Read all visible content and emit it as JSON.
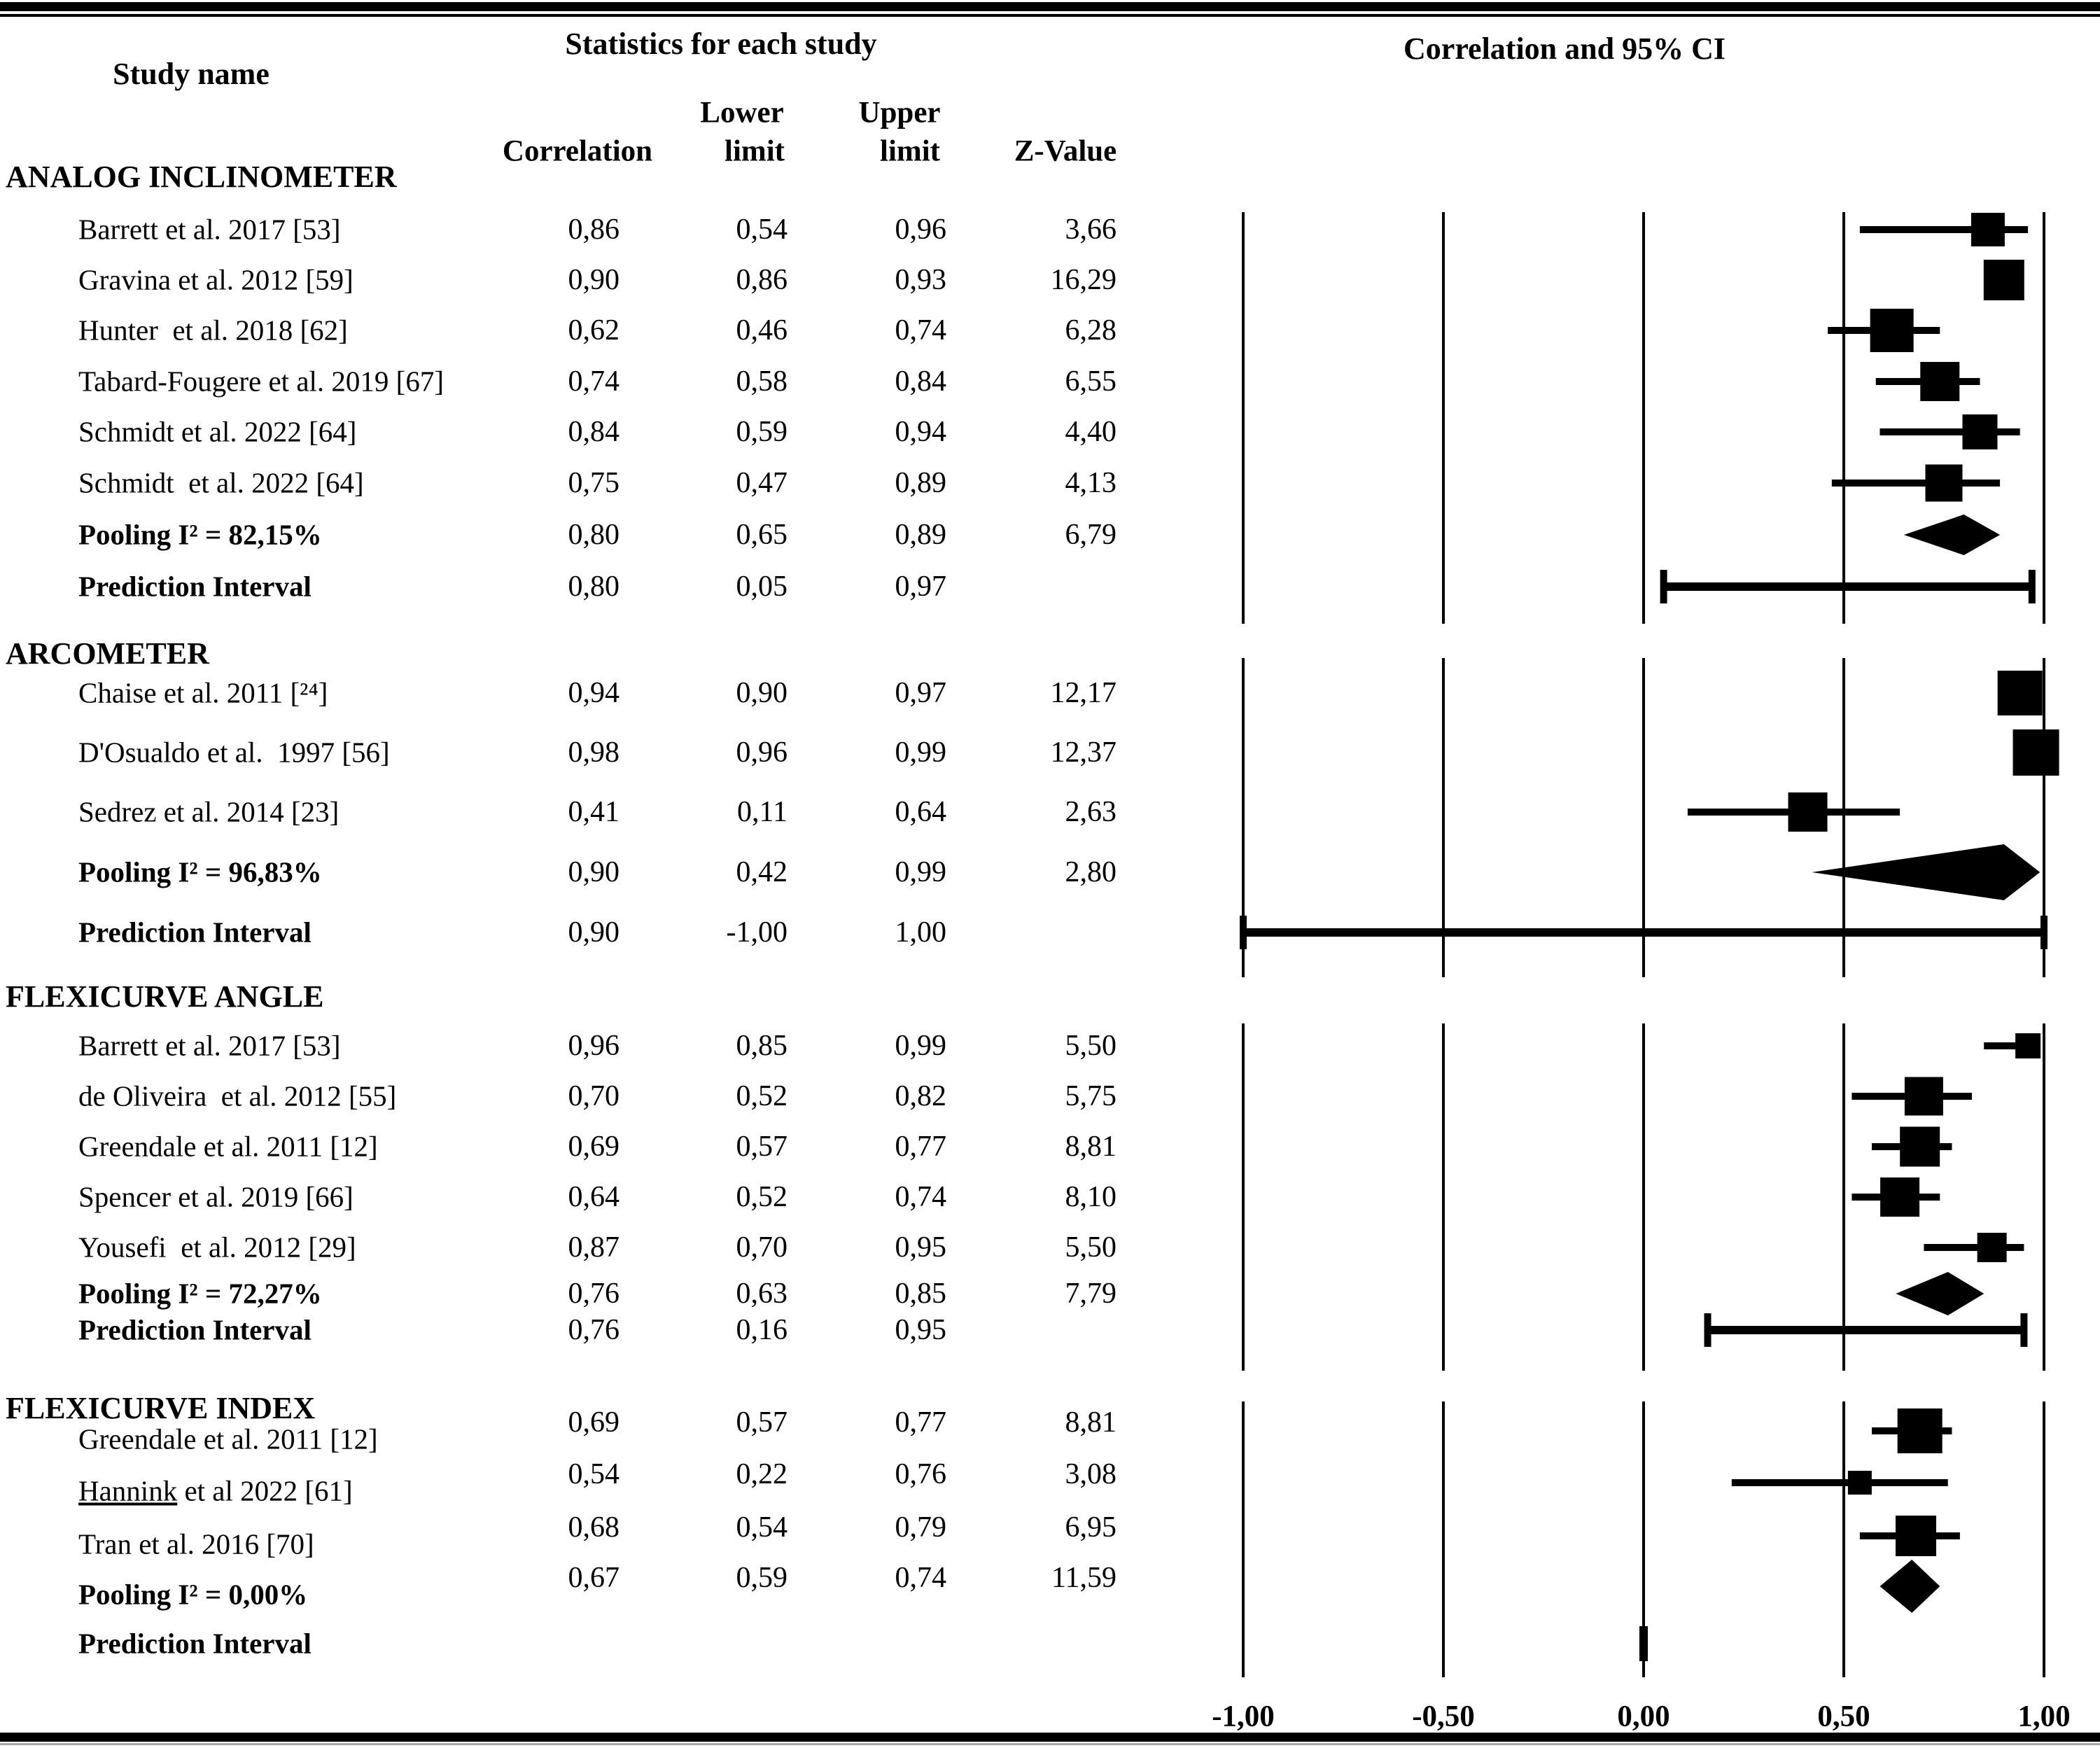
{
  "header": {
    "study_name": "Study name",
    "statistics": "Statistics for each study",
    "plot": "Correlation and 95% CI"
  },
  "columns": {
    "correlation": "Correlation",
    "lower_top": "Lower",
    "lower_bottom": "limit",
    "upper_top": "Upper",
    "upper_bottom": "limit",
    "z": "Z-Value"
  },
  "axis": {
    "labels": [
      "-1,00",
      "-0,50",
      "0,00",
      "0,50",
      "1,00"
    ],
    "values": [
      -1,
      -0.5,
      0,
      0.5,
      1
    ]
  },
  "chart_data": {
    "type": "forest",
    "xlim": [
      -1,
      1
    ],
    "legend_position": "none",
    "grid": "vertical-lines",
    "groups": [
      {
        "name": "ANALOG INCLINOMETER",
        "rows": [
          {
            "label": "Barrett et al. 2017 [53]",
            "type": "study",
            "correlation": "0,86",
            "lower": "0,54",
            "upper": "0,96",
            "z": "3,66",
            "weight": 48
          },
          {
            "label": "Gravina et al. 2012 [59]",
            "type": "study",
            "correlation": "0,90",
            "lower": "0,86",
            "upper": "0,93",
            "z": "16,29",
            "weight": 58
          },
          {
            "label": "Hunter  et al. 2018 [62]",
            "type": "study",
            "correlation": "0,62",
            "lower": "0,46",
            "upper": "0,74",
            "z": "6,28",
            "weight": 62
          },
          {
            "label": "Tabard-Fougere et al. 2019 [67]",
            "type": "study",
            "correlation": "0,74",
            "lower": "0,58",
            "upper": "0,84",
            "z": "6,55",
            "weight": 56
          },
          {
            "label": "Schmidt et al. 2022 [64]",
            "type": "study",
            "correlation": "0,84",
            "lower": "0,59",
            "upper": "0,94",
            "z": "4,40",
            "weight": 50
          },
          {
            "label": "Schmidt  et al. 2022 [64]",
            "type": "study",
            "correlation": "0,75",
            "lower": "0,47",
            "upper": "0,89",
            "z": "4,13",
            "weight": 53
          },
          {
            "label": "Pooling I² = 82,15%",
            "type": "pooled",
            "correlation": "0,80",
            "lower": "0,65",
            "upper": "0,89",
            "z": "6,79"
          },
          {
            "label": "Prediction Interval",
            "type": "prediction",
            "correlation": "0,80",
            "lower": "0,05",
            "upper": "0,97",
            "z": ""
          }
        ]
      },
      {
        "name": "ARCOMETER",
        "rows": [
          {
            "label": "Chaise et al. 2011 [²⁴]",
            "type": "study",
            "correlation": "0,94",
            "lower": "0,90",
            "upper": "0,97",
            "z": "12,17",
            "weight": 64
          },
          {
            "label": "D'Osualdo et al.  1997 [56]",
            "type": "study",
            "correlation": "0,98",
            "lower": "0,96",
            "upper": "0,99",
            "z": "12,37",
            "weight": 66
          },
          {
            "label": "Sedrez et al. 2014 [23]",
            "type": "study",
            "correlation": "0,41",
            "lower": "0,11",
            "upper": "0,64",
            "z": "2,63",
            "weight": 56
          },
          {
            "label": "Pooling I² = 96,83%",
            "type": "pooled",
            "correlation": "0,90",
            "lower": "0,42",
            "upper": "0,99",
            "z": "2,80"
          },
          {
            "label": "Prediction Interval",
            "type": "prediction",
            "correlation": "0,90",
            "lower": "-1,00",
            "upper": "1,00",
            "z": ""
          }
        ]
      },
      {
        "name": "FLEXICURVE ANGLE",
        "rows": [
          {
            "label": "Barrett et al. 2017 [53]",
            "type": "study",
            "correlation": "0,96",
            "lower": "0,85",
            "upper": "0,99",
            "z": "5,50",
            "weight": 36
          },
          {
            "label": "de Oliveira  et al. 2012 [55]",
            "type": "study",
            "correlation": "0,70",
            "lower": "0,52",
            "upper": "0,82",
            "z": "5,75",
            "weight": 55
          },
          {
            "label": "Greendale et al. 2011 [12]",
            "type": "study",
            "correlation": "0,69",
            "lower": "0,57",
            "upper": "0,77",
            "z": "8,81",
            "weight": 57
          },
          {
            "label": "Spencer et al. 2019 [66]",
            "type": "study",
            "correlation": "0,64",
            "lower": "0,52",
            "upper": "0,74",
            "z": "8,10",
            "weight": 56
          },
          {
            "label": "Yousefi  et al. 2012 [29]",
            "type": "study",
            "correlation": "0,87",
            "lower": "0,70",
            "upper": "0,95",
            "z": "5,50",
            "weight": 42
          },
          {
            "label": "Pooling I² = 72,27%",
            "type": "pooled",
            "correlation": "0,76",
            "lower": "0,63",
            "upper": "0,85",
            "z": "7,79"
          },
          {
            "label": "Prediction Interval",
            "type": "prediction",
            "correlation": "0,76",
            "lower": "0,16",
            "upper": "0,95",
            "z": ""
          }
        ]
      },
      {
        "name": "FLEXICURVE INDEX",
        "rows": [
          {
            "label": "Greendale et al. 2011 [12]",
            "type": "study",
            "correlation": "0,69",
            "lower": "0,57",
            "upper": "0,77",
            "z": "8,81",
            "weight": 64
          },
          {
            "label": "Hannink et al 2022 [61]",
            "type": "study",
            "correlation": "0,54",
            "lower": "0,22",
            "upper": "0,76",
            "z": "3,08",
            "weight": 34,
            "underline_first_word": true
          },
          {
            "label": "Tran et al. 2016 [70]",
            "type": "study",
            "correlation": "0,68",
            "lower": "0,54",
            "upper": "0,79",
            "z": "6,95",
            "weight": 58
          },
          {
            "label": "Pooling I² = 0,00%",
            "type": "pooled",
            "correlation": "0,67",
            "lower": "0,59",
            "upper": "0,74",
            "z": "11,59"
          },
          {
            "label": "Prediction Interval",
            "type": "prediction",
            "correlation": "",
            "lower": "",
            "upper": "",
            "z": "",
            "tick_at_zero": true
          }
        ]
      }
    ]
  }
}
